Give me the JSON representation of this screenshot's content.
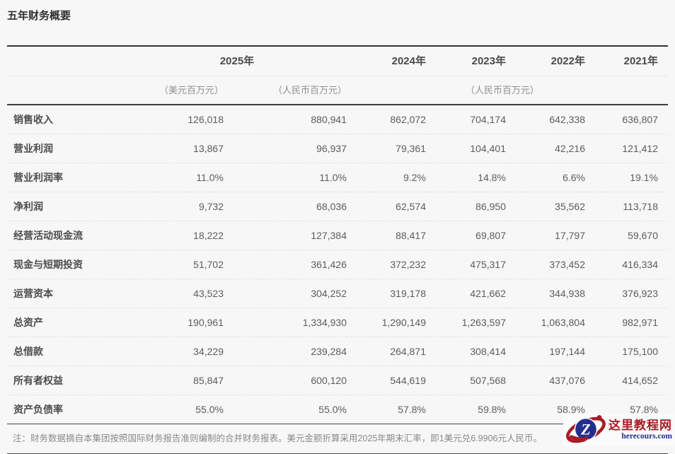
{
  "page": {
    "title": "五年财务概要"
  },
  "table": {
    "years": [
      "2025年",
      "2024年",
      "2023年",
      "2022年",
      "2021年"
    ],
    "subheaders": {
      "usd": "（美元百万元）",
      "rmb": "（人民币百万元）",
      "rmb_group": "（人民币百万元）"
    },
    "rows": [
      {
        "label": "销售收入",
        "values": [
          "126,018",
          "880,941",
          "862,072",
          "704,174",
          "642,338",
          "636,807"
        ]
      },
      {
        "label": "营业利润",
        "values": [
          "13,867",
          "96,937",
          "79,361",
          "104,401",
          "42,216",
          "121,412"
        ]
      },
      {
        "label": "营业利润率",
        "values": [
          "11.0%",
          "11.0%",
          "9.2%",
          "14.8%",
          "6.6%",
          "19.1%"
        ]
      },
      {
        "label": "净利润",
        "values": [
          "9,732",
          "68,036",
          "62,574",
          "86,950",
          "35,562",
          "113,718"
        ]
      },
      {
        "label": "经营活动现金流",
        "values": [
          "18,222",
          "127,384",
          "88,417",
          "69,807",
          "17,797",
          "59,670"
        ]
      },
      {
        "label": "现金与短期投资",
        "values": [
          "51,702",
          "361,426",
          "372,232",
          "475,317",
          "373,452",
          "416,334"
        ]
      },
      {
        "label": "运营资本",
        "values": [
          "43,523",
          "304,252",
          "319,178",
          "421,662",
          "344,938",
          "376,923"
        ]
      },
      {
        "label": "总资产",
        "values": [
          "190,961",
          "1,334,930",
          "1,290,149",
          "1,263,597",
          "1,063,804",
          "982,971"
        ]
      },
      {
        "label": "总借款",
        "values": [
          "34,229",
          "239,284",
          "264,871",
          "308,414",
          "197,144",
          "175,100"
        ]
      },
      {
        "label": "所有者权益",
        "values": [
          "85,847",
          "600,120",
          "544,619",
          "507,568",
          "437,076",
          "414,652"
        ]
      },
      {
        "label": "资产负债率",
        "values": [
          "55.0%",
          "55.0%",
          "57.8%",
          "59.8%",
          "58.9%",
          "57.8%"
        ]
      }
    ],
    "footnote": "注：财务数据摘自本集团按照国际财务报告准则编制的合并财务报表。美元金额折算采用2025年期末汇率，即1美元兑6.9906元人民币。"
  },
  "watermark": {
    "site_name": "这里教程网",
    "site_url": "herecours.com",
    "logo_letter": "Z",
    "colors": {
      "red": "#a61d28",
      "blue": "#232e8d"
    }
  }
}
